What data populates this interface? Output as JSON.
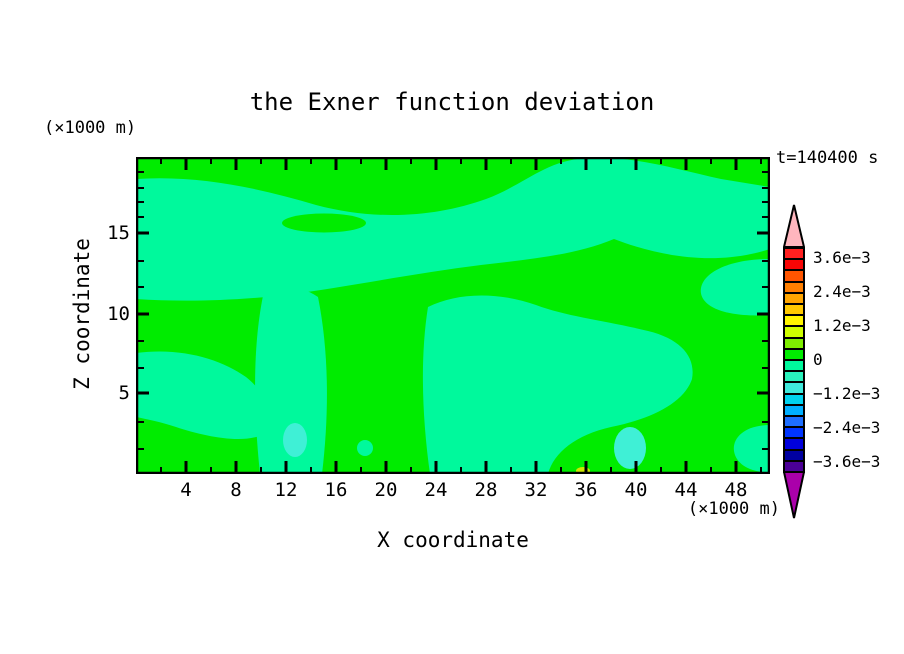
{
  "title": "the Exner function deviation",
  "timestamp": "t=140400 s",
  "axes": {
    "x": {
      "label": "X coordinate",
      "unit": "(×1000 m)",
      "ticks": [
        "4",
        "8",
        "12",
        "16",
        "20",
        "24",
        "28",
        "32",
        "36",
        "40",
        "44",
        "48"
      ]
    },
    "z": {
      "label": "Z coordinate",
      "unit": "(×1000 m)",
      "ticks": [
        "5",
        "10",
        "15"
      ]
    }
  },
  "colorbar": {
    "labels": [
      "3.6e−3",
      "2.4e−3",
      "1.2e−3",
      "0",
      "−1.2e−3",
      "−2.4e−3",
      "−3.6e−3"
    ],
    "colors": [
      "#FF2020",
      "#F80505",
      "#FF5500",
      "#FF7F00",
      "#FFA500",
      "#FFC800",
      "#FFF500",
      "#D0FF00",
      "#7FEE00",
      "#00EC00",
      "#00F99C",
      "#29F2BC",
      "#3FE9DC",
      "#00D2EE",
      "#00AFFF",
      "#1E6EFF",
      "#0035FF",
      "#0000DC",
      "#0000A0",
      "#4B0096"
    ],
    "arrow_top_color": "#FFB6BE",
    "arrow_bottom_color": "#AA00AA",
    "outline_color": "#000000"
  },
  "field": {
    "background_band_color": "#00EC00",
    "negative_band_color": "#00F99C",
    "aqua_band_color": "#3FF0D6",
    "speck_band_color": "#CDE800",
    "frame_color": "#000000"
  },
  "chart_data": {
    "type": "heatmap",
    "title": "the Exner function deviation",
    "xlabel": "X coordinate",
    "ylabel": "Z coordinate",
    "x_unit": "×1000 m",
    "y_unit": "×1000 m",
    "x_ticks": [
      4,
      8,
      12,
      16,
      20,
      24,
      28,
      32,
      36,
      40,
      44,
      48
    ],
    "y_ticks": [
      5,
      10,
      15
    ],
    "x_range": [
      0,
      50.7
    ],
    "y_range": [
      0,
      20
    ],
    "x_minor_tick_step": 2,
    "time_annotation": "t=140400 s",
    "legend_position": "right colorbar with arrow caps",
    "grid": false,
    "contour_interval": 0.0004,
    "colorbar_range": [
      -0.004,
      0.004
    ],
    "labeled_levels": [
      0.0036,
      0.0024,
      0.0012,
      0,
      -0.0012,
      -0.0024,
      -0.0036
    ],
    "field_bands_visible": [
      {
        "value_range": [
          0,
          0.0004
        ],
        "color": "#00EC00",
        "note": "bright green, dominant band: top strip, bottom-left corner, center-right masses"
      },
      {
        "value_range": [
          -0.0004,
          0
        ],
        "color": "#00F99C",
        "note": "spring-green band: broad sweep across upper-left to right edge, central columns reaching the bottom, pockets at left and right edges"
      },
      {
        "value_range": [
          -0.0008,
          -0.0004
        ],
        "color": "#3FF0D6",
        "note": "small aqua blobs near bottom at x≈12 and x≈39 (×1000 m), z≈1-3"
      },
      {
        "value_range": [
          0.0008,
          0.0016
        ],
        "color": "#CDE800",
        "note": "tiny yellow-green speck at bottom edge near x≈35.5"
      }
    ]
  }
}
